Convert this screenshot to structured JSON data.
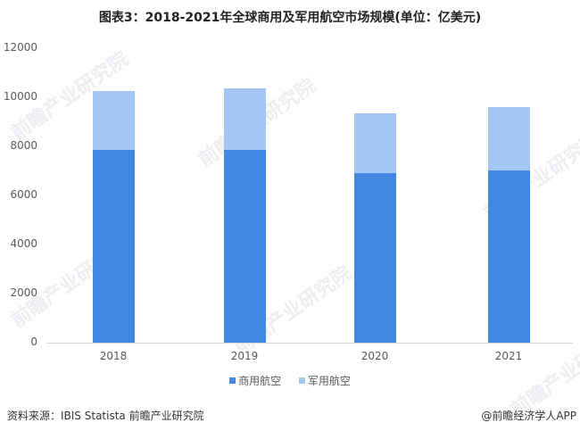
{
  "title": "图表3：2018-2021年全球商用及军用航空市场规模(单位：亿美元)",
  "colors": {
    "commercial": "#4287E3",
    "military": "#A3C6F5",
    "axis": "#D9D9D9",
    "tick_text": "#595959"
  },
  "legend": {
    "items": [
      {
        "label": "商用航空",
        "color": "#4287E3"
      },
      {
        "label": "军用航空",
        "color": "#A3C6F5"
      }
    ]
  },
  "footer": {
    "source": "资料来源：IBIS Statista 前瞻产业研究院",
    "credit": "@前瞻经济学人APP"
  },
  "watermark": {
    "text": "前瞻产业研究院"
  },
  "chart_data": {
    "type": "bar",
    "stacked": true,
    "title": "图表3：2018-2021年全球商用及军用航空市场规模(单位：亿美元)",
    "xlabel": "",
    "ylabel": "",
    "unit": "亿美元",
    "categories": [
      "2018",
      "2019",
      "2020",
      "2021"
    ],
    "series": [
      {
        "name": "商用航空",
        "values": [
          7850,
          7850,
          6910,
          7020
        ]
      },
      {
        "name": "军用航空",
        "values": [
          2400,
          2510,
          2440,
          2580
        ]
      }
    ],
    "totals": [
      10250,
      10360,
      9350,
      9600
    ],
    "yticks": [
      "0",
      "2000",
      "4000",
      "6000",
      "8000",
      "10000",
      "12000"
    ],
    "ylim": [
      0,
      12000
    ],
    "grid": false,
    "legend_position": "bottom"
  }
}
